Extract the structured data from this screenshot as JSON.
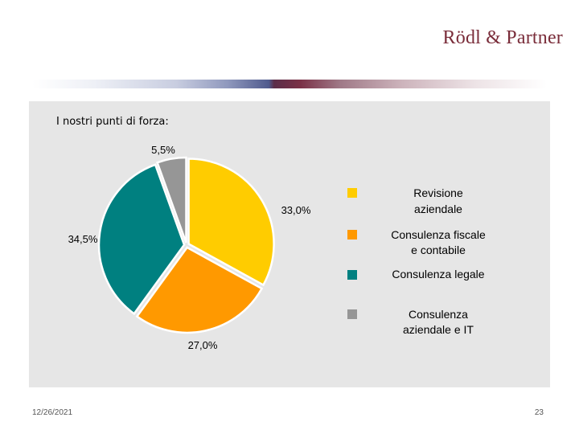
{
  "header": {
    "logo_text": "Rödl & Partner",
    "logo_color": "#7a2d3a"
  },
  "slide": {
    "heading": "I nostri punti di forza:"
  },
  "footer": {
    "date": "12/26/2021",
    "page_number": "23"
  },
  "chart_data": {
    "type": "pie",
    "title": "",
    "slices": [
      {
        "name": "Revisione aziendale",
        "value": 33.0,
        "label": "33,0%",
        "color": "#ffcc00"
      },
      {
        "name": "Consulenza fiscale e contabile",
        "value": 27.0,
        "label": "27,0%",
        "color": "#ff9900"
      },
      {
        "name": "Consulenza legale",
        "value": 34.5,
        "label": "34,5%",
        "color": "#008080"
      },
      {
        "name": "Consulenza aziendale e IT",
        "value": 5.5,
        "label": "5,5%",
        "color": "#969696"
      }
    ],
    "legend": {
      "position": "right",
      "entries": [
        {
          "lines": [
            "Revisione",
            "aziendale"
          ],
          "color": "#ffcc00"
        },
        {
          "lines": [
            "Consulenza fiscale",
            "e contabile"
          ],
          "color": "#ff9900"
        },
        {
          "lines": [
            "Consulenza legale"
          ],
          "color": "#008080"
        },
        {
          "lines": [
            "Consulenza",
            "aziendale e IT"
          ],
          "color": "#969696"
        }
      ]
    }
  }
}
